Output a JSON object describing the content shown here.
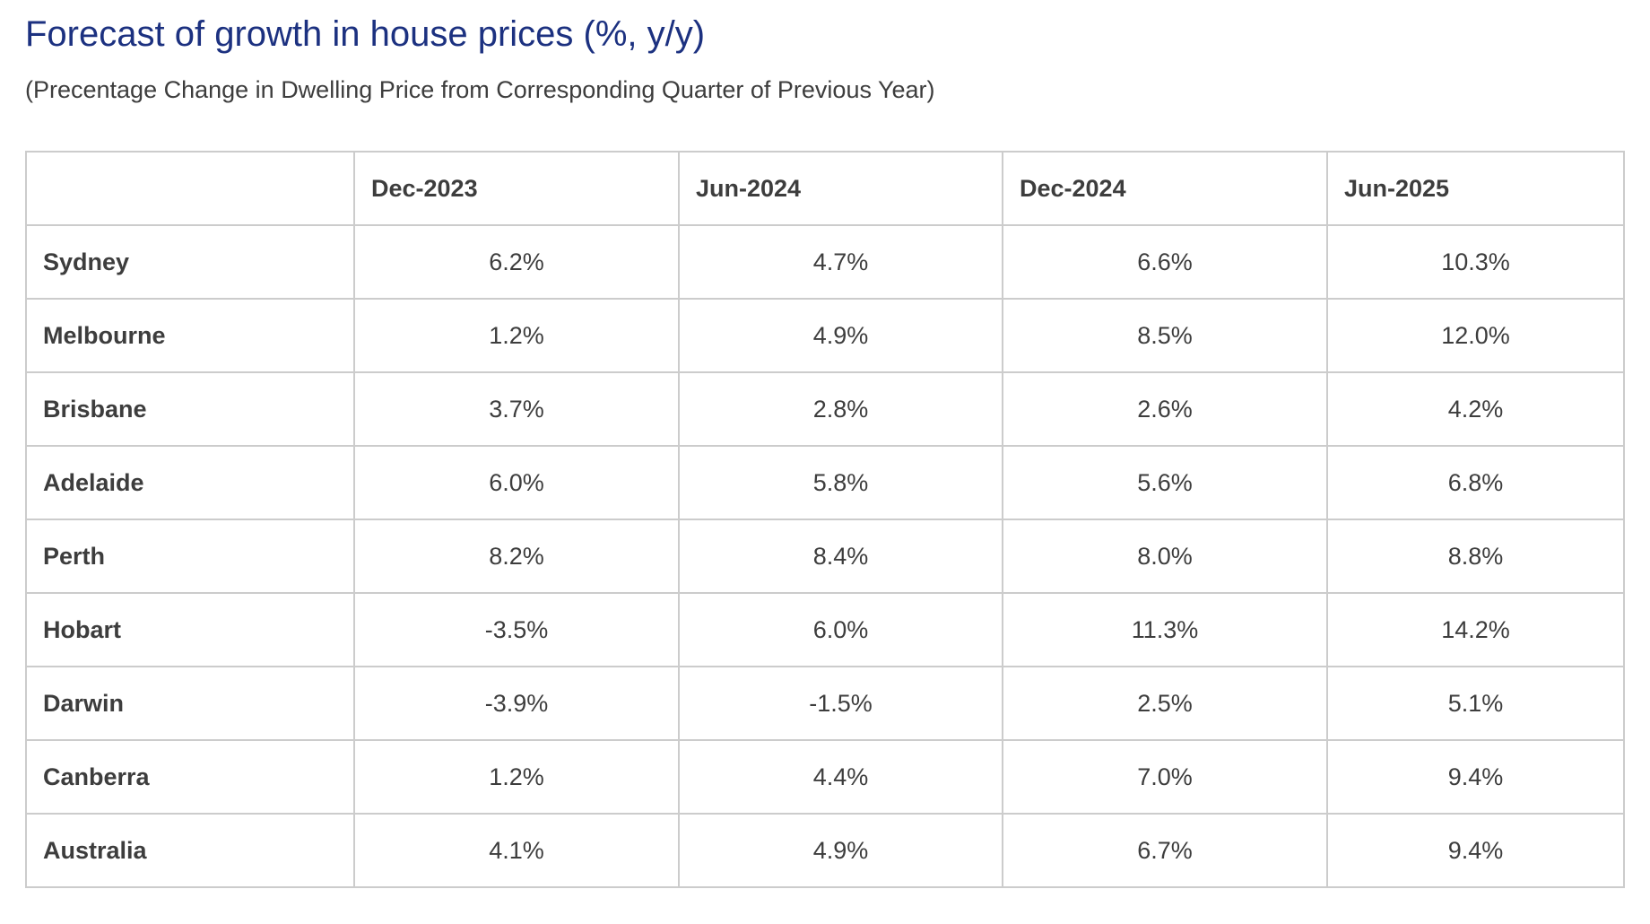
{
  "page": {
    "title": "Forecast of growth in house prices (%, y/y)",
    "subtitle": "(Precentage Change in Dwelling Price from Corresponding Quarter of Previous Year)"
  },
  "colors": {
    "title_blue": "#1c3180",
    "body_text": "#3d3d3d",
    "table_border": "#cccccc",
    "background": "#ffffff"
  },
  "chart_data": {
    "type": "table",
    "title": "Forecast of growth in house prices (%, y/y)",
    "subtitle": "(Precentage Change in Dwelling Price from Corresponding Quarter of Previous Year)",
    "columns": [
      "",
      "Dec-2023",
      "Jun-2024",
      "Dec-2024",
      "Jun-2025"
    ],
    "rows": [
      {
        "label": "Sydney",
        "values": [
          "6.2%",
          "4.7%",
          "6.6%",
          "10.3%"
        ]
      },
      {
        "label": "Melbourne",
        "values": [
          "1.2%",
          "4.9%",
          "8.5%",
          "12.0%"
        ]
      },
      {
        "label": "Brisbane",
        "values": [
          "3.7%",
          "2.8%",
          "2.6%",
          "4.2%"
        ]
      },
      {
        "label": "Adelaide",
        "values": [
          "6.0%",
          "5.8%",
          "5.6%",
          "6.8%"
        ]
      },
      {
        "label": "Perth",
        "values": [
          "8.2%",
          "8.4%",
          "8.0%",
          "8.8%"
        ]
      },
      {
        "label": "Hobart",
        "values": [
          "-3.5%",
          "6.0%",
          "11.3%",
          "14.2%"
        ]
      },
      {
        "label": "Darwin",
        "values": [
          "-3.9%",
          "-1.5%",
          "2.5%",
          "5.1%"
        ]
      },
      {
        "label": "Canberra",
        "values": [
          "1.2%",
          "4.4%",
          "7.0%",
          "9.4%"
        ]
      },
      {
        "label": "Australia",
        "values": [
          "4.1%",
          "4.9%",
          "6.7%",
          "9.4%"
        ]
      }
    ],
    "layout": {
      "grid": true,
      "header_alignment": "left",
      "value_alignment": "center",
      "row_label_style": "bold"
    }
  }
}
